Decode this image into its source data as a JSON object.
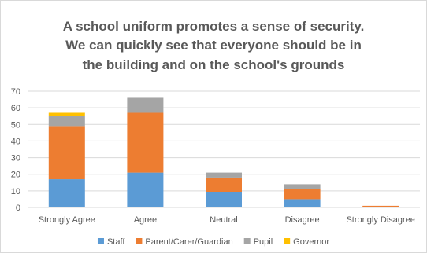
{
  "chart_data": {
    "type": "bar",
    "stacked": true,
    "title_lines": [
      "A school uniform promotes a sense of security.",
      "We can quickly see that everyone should be in",
      "the building  and on the school's grounds"
    ],
    "categories": [
      "Strongly Agree",
      "Agree",
      "Neutral",
      "Disagree",
      "Strongly Disagree"
    ],
    "series": [
      {
        "name": "Staff",
        "color": "#5b9bd5",
        "values": [
          17,
          21,
          9,
          5,
          0
        ]
      },
      {
        "name": "Parent/Carer/Guardian",
        "color": "#ed7d31",
        "values": [
          32,
          36,
          9,
          6,
          1
        ]
      },
      {
        "name": "Pupil",
        "color": "#a5a5a5",
        "values": [
          6,
          9,
          3,
          3,
          0
        ]
      },
      {
        "name": "Governor",
        "color": "#ffc000",
        "values": [
          2,
          0,
          0,
          0,
          0
        ]
      }
    ],
    "yticks": [
      0,
      10,
      20,
      30,
      40,
      50,
      60,
      70
    ],
    "ylim": [
      0,
      70
    ],
    "grid": true,
    "legend_position": "bottom"
  }
}
